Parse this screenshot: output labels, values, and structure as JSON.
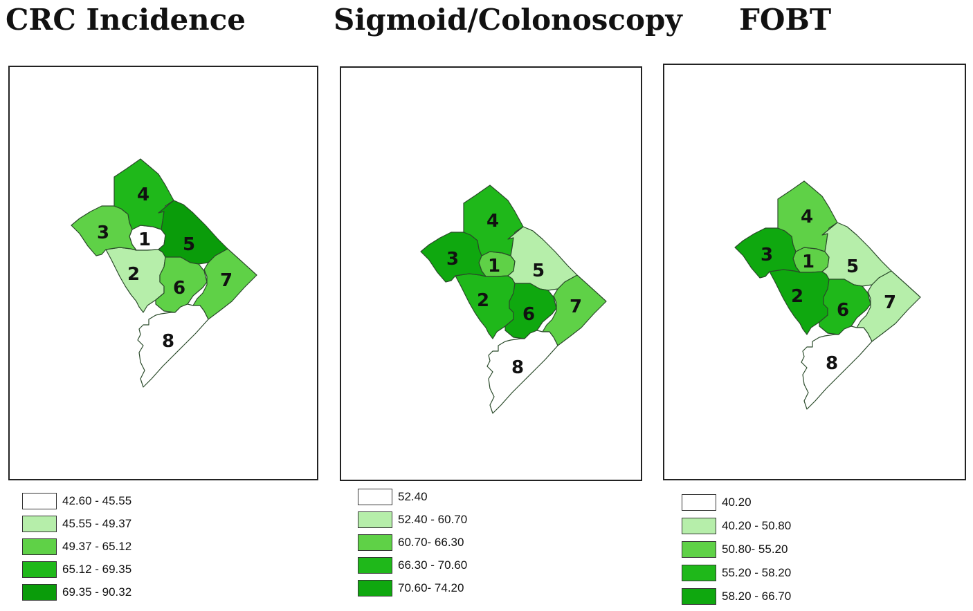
{
  "panels": [
    {
      "title": "CRC  Incidence",
      "legend": [
        {
          "label": "42.60 - 45.55",
          "color": "#ffffff"
        },
        {
          "label": "45.55 - 49.37",
          "color": "#b6eeaa"
        },
        {
          "label": "49.37 - 65.12",
          "color": "#5fd147"
        },
        {
          "label": "65.12 - 69.35",
          "color": "#1fb81a"
        },
        {
          "label": "69.35 - 90.32",
          "color": "#0a9c0a"
        }
      ],
      "wards": [
        {
          "label": "1",
          "color": "#ffffff"
        },
        {
          "label": "2",
          "color": "#b6eeaa"
        },
        {
          "label": "3",
          "color": "#5fd147"
        },
        {
          "label": "4",
          "color": "#1fb81a"
        },
        {
          "label": "5",
          "color": "#0a9c0a"
        },
        {
          "label": "6",
          "color": "#5fd147"
        },
        {
          "label": "7",
          "color": "#5fd147"
        },
        {
          "label": "8",
          "color": "#ffffff"
        }
      ]
    },
    {
      "title": "Sigmoid/Colonoscopy",
      "legend": [
        {
          "label": "52.40",
          "color": "#ffffff"
        },
        {
          "label": "52.40 - 60.70",
          "color": "#b6eeaa"
        },
        {
          "label": "60.70- 66.30",
          "color": "#5fd147"
        },
        {
          "label": "66.30 - 70.60",
          "color": "#1fb81a"
        },
        {
          "label": "70.60- 74.20",
          "color": "#0fa80f"
        }
      ],
      "wards": [
        {
          "label": "1",
          "color": "#5fd147"
        },
        {
          "label": "2",
          "color": "#1fb81a"
        },
        {
          "label": "3",
          "color": "#0fa80f"
        },
        {
          "label": "4",
          "color": "#1fb81a"
        },
        {
          "label": "5",
          "color": "#b6eeaa"
        },
        {
          "label": "6",
          "color": "#0fa80f"
        },
        {
          "label": "7",
          "color": "#5fd147"
        },
        {
          "label": "8",
          "color": "#ffffff"
        }
      ]
    },
    {
      "title": "FOBT",
      "legend": [
        {
          "label": "40.20",
          "color": "#ffffff"
        },
        {
          "label": "40.20 - 50.80",
          "color": "#b6eeaa"
        },
        {
          "label": "50.80- 55.20",
          "color": "#5fd147"
        },
        {
          "label": "55.20 - 58.20",
          "color": "#1fb81a"
        },
        {
          "label": "58.20 - 66.70",
          "color": "#0fa80f"
        }
      ],
      "wards": [
        {
          "label": "1",
          "color": "#5fd147"
        },
        {
          "label": "2",
          "color": "#0fa80f"
        },
        {
          "label": "3",
          "color": "#0fa80f"
        },
        {
          "label": "4",
          "color": "#5fd147"
        },
        {
          "label": "5",
          "color": "#b6eeaa"
        },
        {
          "label": "6",
          "color": "#1fb81a"
        },
        {
          "label": "7",
          "color": "#b6eeaa"
        },
        {
          "label": "8",
          "color": "#ffffff"
        }
      ]
    }
  ]
}
